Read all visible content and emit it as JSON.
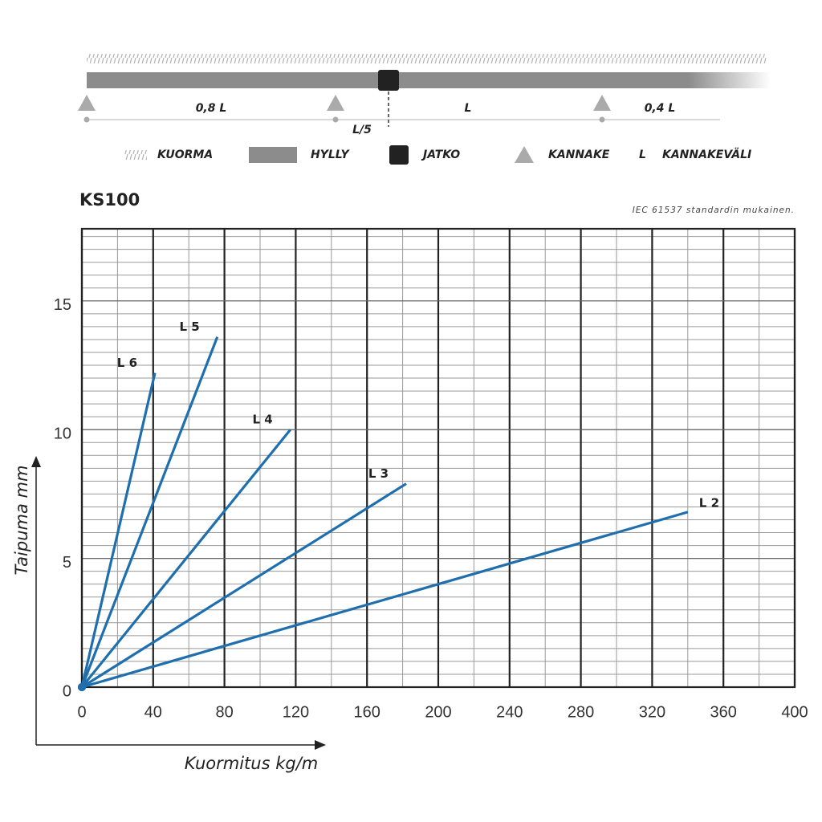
{
  "diagram": {
    "spans": [
      "0,8 L",
      "L",
      "0,4 L"
    ],
    "extension_label": "L/5",
    "legend": [
      "KUORMA",
      "HYLLY",
      "JATKO",
      "KANNAKE",
      "L",
      "KANNAKEVÄLI"
    ]
  },
  "chart_data": {
    "type": "line",
    "title": "KS100",
    "subtitle": "IEC 61537 standardin mukainen.",
    "x_label": "Kuormitus kg/m",
    "y_label": "Taipuma mm",
    "xlim": [
      0,
      400
    ],
    "xticks": [
      0,
      40,
      80,
      120,
      160,
      200,
      240,
      280,
      320,
      360,
      400
    ],
    "ylim": [
      0,
      17.8
    ],
    "yticks": [
      0,
      5,
      10,
      15
    ],
    "grid": true,
    "minor_grid": {
      "x": 20,
      "y": 0.5
    },
    "series": [
      {
        "name": "L 2",
        "color": "#1f6fae",
        "x": [
          0,
          340
        ],
        "values": [
          0,
          6.8
        ]
      },
      {
        "name": "L 3",
        "color": "#1f6fae",
        "x": [
          0,
          182
        ],
        "values": [
          0,
          7.9
        ]
      },
      {
        "name": "L 4",
        "color": "#1f6fae",
        "x": [
          0,
          117
        ],
        "values": [
          0,
          10.0
        ]
      },
      {
        "name": "L 5",
        "color": "#1f6fae",
        "x": [
          0,
          76
        ],
        "values": [
          0,
          13.6
        ]
      },
      {
        "name": "L 6",
        "color": "#1f6fae",
        "x": [
          0,
          41
        ],
        "values": [
          0,
          12.2
        ]
      }
    ]
  }
}
